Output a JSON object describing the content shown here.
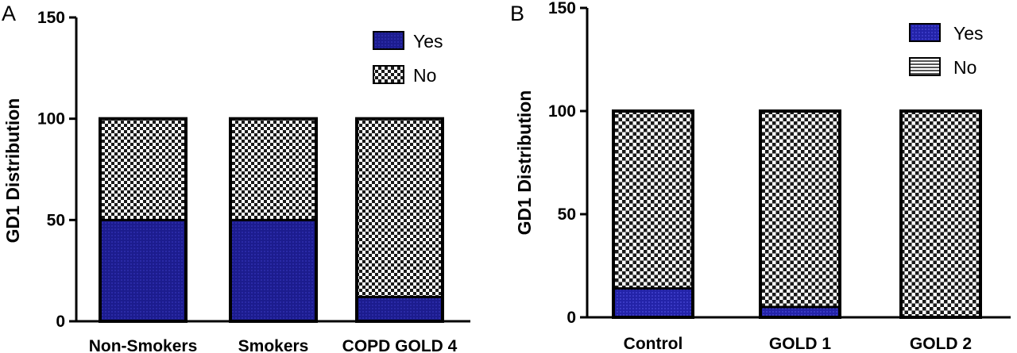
{
  "chart_data": [
    {
      "panel": "A",
      "type": "bar",
      "stacked": true,
      "categories": [
        "Non-Smokers",
        "Smokers",
        "COPD GOLD 4"
      ],
      "series": [
        {
          "name": "Yes",
          "values": [
            50,
            50,
            12
          ]
        },
        {
          "name": "No",
          "values": [
            50,
            50,
            88
          ]
        }
      ],
      "ylabel": "GD1  Distribution",
      "xlabel": "",
      "ylim": [
        0,
        150
      ],
      "yticks": [
        0,
        50,
        100,
        150
      ],
      "legend_position": "top-right",
      "grid": false,
      "colors": {
        "yes": "#1a1a8c",
        "no_pattern": "checkerboard"
      }
    },
    {
      "panel": "B",
      "type": "bar",
      "stacked": true,
      "categories": [
        "Control",
        "GOLD 1",
        "GOLD 2"
      ],
      "series": [
        {
          "name": "Yes",
          "values": [
            14,
            5,
            0
          ]
        },
        {
          "name": "No",
          "values": [
            86,
            95,
            100
          ]
        }
      ],
      "ylabel": "GD1 Distribution",
      "xlabel": "",
      "ylim": [
        0,
        150
      ],
      "yticks": [
        0,
        50,
        100,
        150
      ],
      "legend_position": "top-right",
      "grid": false,
      "colors": {
        "yes": "#2525a8",
        "no_pattern": "checkerboard"
      }
    }
  ]
}
